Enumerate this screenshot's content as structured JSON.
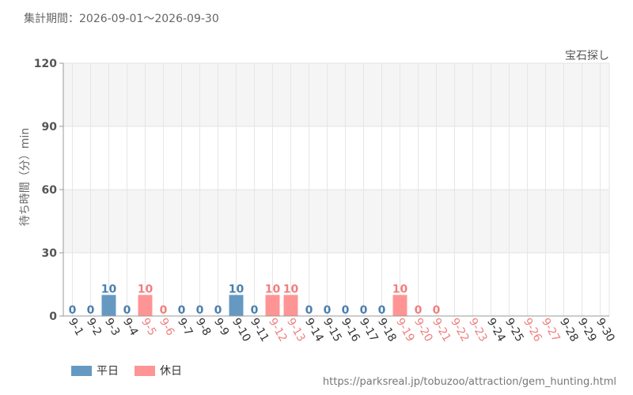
{
  "header": {
    "period": "集計期間：2026-09-01～2026-09-30",
    "attraction": "宝石探し"
  },
  "footer": {
    "url": "https://parksreal.jp/tobuzoo/attraction/gem_hunting.html"
  },
  "colors": {
    "weekday": "#6699c2",
    "holiday": "#ff9494",
    "weekday_text": "#4a7fae",
    "holiday_text": "#f07f7f",
    "band": "#f5f5f5"
  },
  "chart_data": {
    "type": "bar",
    "ylabel": "待ち時間（分）min",
    "ylim": [
      0,
      120
    ],
    "yticks": [
      0,
      30,
      60,
      90,
      120
    ],
    "grid": true,
    "legend_position": "bottom-left",
    "legend": [
      "平日",
      "休日"
    ],
    "categories": [
      "9-1",
      "9-2",
      "9-3",
      "9-4",
      "9-5",
      "9-6",
      "9-7",
      "9-8",
      "9-9",
      "9-10",
      "9-11",
      "9-12",
      "9-13",
      "9-14",
      "9-15",
      "9-16",
      "9-17",
      "9-18",
      "9-19",
      "9-20",
      "9-21",
      "9-22",
      "9-23",
      "9-24",
      "9-25",
      "9-26",
      "9-27",
      "9-28",
      "9-29",
      "9-30"
    ],
    "day_type": [
      "平日",
      "平日",
      "平日",
      "平日",
      "休日",
      "休日",
      "平日",
      "平日",
      "平日",
      "平日",
      "平日",
      "休日",
      "休日",
      "平日",
      "平日",
      "平日",
      "平日",
      "平日",
      "休日",
      "休日",
      "休日",
      "休日",
      "休日",
      "平日",
      "平日",
      "休日",
      "休日",
      "平日",
      "平日",
      "平日"
    ],
    "values": [
      0,
      0,
      10,
      0,
      10,
      0,
      0,
      0,
      0,
      10,
      0,
      10,
      10,
      0,
      0,
      0,
      0,
      0,
      10,
      0,
      0,
      null,
      null,
      null,
      null,
      null,
      null,
      null,
      null,
      null
    ]
  }
}
